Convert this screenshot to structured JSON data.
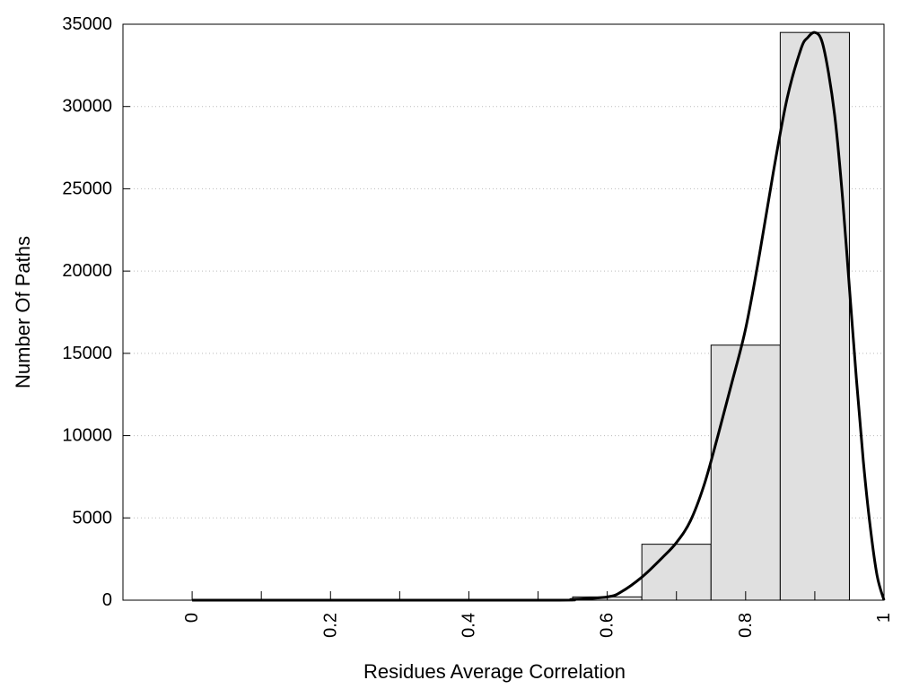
{
  "chart_data": {
    "type": "bar",
    "xlabel": "Residues Average Correlation",
    "ylabel": "Number Of Paths",
    "xlim": [
      -0.1,
      1.0
    ],
    "ylim": [
      0,
      35000
    ],
    "xticks": [
      0,
      0.2,
      0.4,
      0.6,
      0.8,
      1
    ],
    "xtick_labels": [
      "0",
      "0.2",
      "0.4",
      "0.6",
      "0.8",
      "1"
    ],
    "xminor_ticks": [
      0.1,
      0.3,
      0.5,
      0.7,
      0.9
    ],
    "yticks": [
      0,
      5000,
      10000,
      15000,
      20000,
      25000,
      30000,
      35000
    ],
    "ytick_labels": [
      "0",
      "5000",
      "10000",
      "15000",
      "20000",
      "25000",
      "30000",
      "35000"
    ],
    "grid": true,
    "bin_width": 0.1,
    "bars": [
      {
        "x": 0.0,
        "value": 0
      },
      {
        "x": 0.1,
        "value": 0
      },
      {
        "x": 0.2,
        "value": 0
      },
      {
        "x": 0.3,
        "value": 0
      },
      {
        "x": 0.4,
        "value": 0
      },
      {
        "x": 0.5,
        "value": 0
      },
      {
        "x": 0.6,
        "value": 200
      },
      {
        "x": 0.7,
        "value": 3400
      },
      {
        "x": 0.8,
        "value": 15500
      },
      {
        "x": 0.9,
        "value": 34500
      }
    ],
    "curve": {
      "x": [
        0.0,
        0.5,
        0.55,
        0.6,
        0.62,
        0.65,
        0.68,
        0.7,
        0.72,
        0.74,
        0.76,
        0.78,
        0.8,
        0.82,
        0.84,
        0.86,
        0.88,
        0.89,
        0.9,
        0.91,
        0.92,
        0.93,
        0.94,
        0.95,
        0.96,
        0.97,
        0.98,
        0.99,
        1.0
      ],
      "y": [
        0,
        0,
        50,
        200,
        500,
        1400,
        2600,
        3500,
        4800,
        7000,
        10000,
        13200,
        16500,
        21000,
        26000,
        30500,
        33500,
        34200,
        34500,
        34000,
        32000,
        29000,
        24500,
        19000,
        13500,
        8500,
        4500,
        1500,
        0
      ]
    },
    "bar_fill": "#e0e0e0",
    "bar_stroke": "#000000",
    "curve_stroke": "#000000"
  }
}
